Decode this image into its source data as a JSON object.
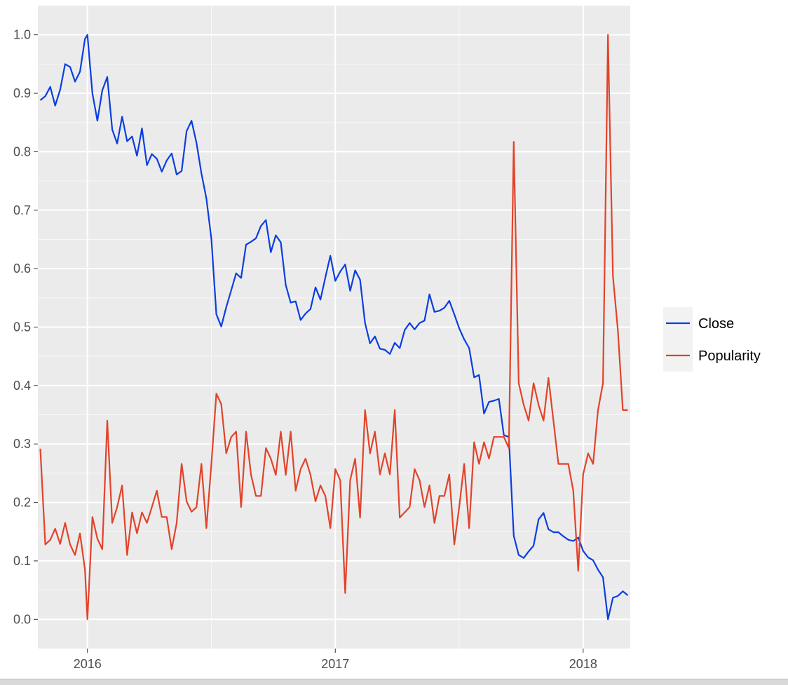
{
  "chart_data": {
    "type": "line",
    "title": "",
    "xlabel": "",
    "ylabel": "",
    "xlim": [
      2015.8,
      2018.19
    ],
    "ylim": [
      -0.05,
      1.05
    ],
    "grid": true,
    "legend_position": "right",
    "x_ticks": [
      {
        "value": 2016,
        "label": "2016"
      },
      {
        "value": 2017,
        "label": "2017"
      },
      {
        "value": 2018,
        "label": "2018"
      }
    ],
    "y_ticks": [
      {
        "value": 0.0,
        "label": "0.0"
      },
      {
        "value": 0.1,
        "label": "0.1"
      },
      {
        "value": 0.2,
        "label": "0.2"
      },
      {
        "value": 0.3,
        "label": "0.3"
      },
      {
        "value": 0.4,
        "label": "0.4"
      },
      {
        "value": 0.5,
        "label": "0.5"
      },
      {
        "value": 0.6,
        "label": "0.6"
      },
      {
        "value": 0.7,
        "label": "0.7"
      },
      {
        "value": 0.8,
        "label": "0.8"
      },
      {
        "value": 0.9,
        "label": "0.9"
      },
      {
        "value": 1.0,
        "label": "1.0"
      }
    ],
    "series": [
      {
        "name": "Close",
        "color": "#0a3ee0",
        "points": [
          [
            2015.81,
            0.888
          ],
          [
            2015.83,
            0.895
          ],
          [
            2015.85,
            0.911
          ],
          [
            2015.87,
            0.879
          ],
          [
            2015.89,
            0.906
          ],
          [
            2015.91,
            0.95
          ],
          [
            2015.93,
            0.945
          ],
          [
            2015.95,
            0.92
          ],
          [
            2015.97,
            0.937
          ],
          [
            2015.99,
            0.993
          ],
          [
            2016.0,
            1.0
          ],
          [
            2016.02,
            0.9
          ],
          [
            2016.04,
            0.853
          ],
          [
            2016.06,
            0.905
          ],
          [
            2016.08,
            0.928
          ],
          [
            2016.1,
            0.838
          ],
          [
            2016.12,
            0.814
          ],
          [
            2016.14,
            0.86
          ],
          [
            2016.16,
            0.818
          ],
          [
            2016.18,
            0.826
          ],
          [
            2016.2,
            0.793
          ],
          [
            2016.22,
            0.84
          ],
          [
            2016.24,
            0.777
          ],
          [
            2016.26,
            0.796
          ],
          [
            2016.28,
            0.788
          ],
          [
            2016.3,
            0.766
          ],
          [
            2016.32,
            0.785
          ],
          [
            2016.34,
            0.797
          ],
          [
            2016.36,
            0.761
          ],
          [
            2016.38,
            0.767
          ],
          [
            2016.4,
            0.835
          ],
          [
            2016.42,
            0.853
          ],
          [
            2016.44,
            0.815
          ],
          [
            2016.46,
            0.763
          ],
          [
            2016.48,
            0.72
          ],
          [
            2016.5,
            0.651
          ],
          [
            2016.52,
            0.522
          ],
          [
            2016.54,
            0.501
          ],
          [
            2016.56,
            0.534
          ],
          [
            2016.58,
            0.563
          ],
          [
            2016.6,
            0.592
          ],
          [
            2016.62,
            0.584
          ],
          [
            2016.64,
            0.641
          ],
          [
            2016.66,
            0.646
          ],
          [
            2016.68,
            0.652
          ],
          [
            2016.7,
            0.673
          ],
          [
            2016.72,
            0.683
          ],
          [
            2016.74,
            0.628
          ],
          [
            2016.76,
            0.657
          ],
          [
            2016.78,
            0.645
          ],
          [
            2016.8,
            0.572
          ],
          [
            2016.82,
            0.542
          ],
          [
            2016.84,
            0.544
          ],
          [
            2016.86,
            0.512
          ],
          [
            2016.88,
            0.523
          ],
          [
            2016.9,
            0.531
          ],
          [
            2016.92,
            0.568
          ],
          [
            2016.94,
            0.547
          ],
          [
            2016.96,
            0.585
          ],
          [
            2016.98,
            0.622
          ],
          [
            2017.0,
            0.579
          ],
          [
            2017.02,
            0.595
          ],
          [
            2017.04,
            0.607
          ],
          [
            2017.06,
            0.562
          ],
          [
            2017.08,
            0.597
          ],
          [
            2017.1,
            0.581
          ],
          [
            2017.12,
            0.507
          ],
          [
            2017.14,
            0.472
          ],
          [
            2017.16,
            0.484
          ],
          [
            2017.18,
            0.463
          ],
          [
            2017.2,
            0.461
          ],
          [
            2017.22,
            0.454
          ],
          [
            2017.24,
            0.473
          ],
          [
            2017.26,
            0.464
          ],
          [
            2017.28,
            0.495
          ],
          [
            2017.3,
            0.507
          ],
          [
            2017.32,
            0.496
          ],
          [
            2017.34,
            0.507
          ],
          [
            2017.36,
            0.511
          ],
          [
            2017.38,
            0.556
          ],
          [
            2017.4,
            0.526
          ],
          [
            2017.42,
            0.528
          ],
          [
            2017.44,
            0.533
          ],
          [
            2017.46,
            0.545
          ],
          [
            2017.48,
            0.522
          ],
          [
            2017.5,
            0.498
          ],
          [
            2017.52,
            0.479
          ],
          [
            2017.54,
            0.464
          ],
          [
            2017.56,
            0.414
          ],
          [
            2017.58,
            0.418
          ],
          [
            2017.6,
            0.352
          ],
          [
            2017.62,
            0.372
          ],
          [
            2017.64,
            0.374
          ],
          [
            2017.66,
            0.377
          ],
          [
            2017.68,
            0.315
          ],
          [
            2017.7,
            0.312
          ],
          [
            2017.72,
            0.143
          ],
          [
            2017.74,
            0.11
          ],
          [
            2017.76,
            0.105
          ],
          [
            2017.78,
            0.116
          ],
          [
            2017.8,
            0.126
          ],
          [
            2017.82,
            0.171
          ],
          [
            2017.84,
            0.182
          ],
          [
            2017.86,
            0.154
          ],
          [
            2017.88,
            0.149
          ],
          [
            2017.9,
            0.149
          ],
          [
            2017.92,
            0.142
          ],
          [
            2017.94,
            0.136
          ],
          [
            2017.96,
            0.134
          ],
          [
            2017.98,
            0.14
          ],
          [
            2018.0,
            0.117
          ],
          [
            2018.02,
            0.106
          ],
          [
            2018.04,
            0.101
          ],
          [
            2018.06,
            0.085
          ],
          [
            2018.08,
            0.072
          ],
          [
            2018.1,
            0.0
          ],
          [
            2018.12,
            0.037
          ],
          [
            2018.14,
            0.04
          ],
          [
            2018.16,
            0.048
          ],
          [
            2018.18,
            0.041
          ]
        ]
      },
      {
        "name": "Popularity",
        "color": "#e2432a",
        "points": [
          [
            2015.81,
            0.292
          ],
          [
            2015.83,
            0.128
          ],
          [
            2015.85,
            0.136
          ],
          [
            2015.87,
            0.155
          ],
          [
            2015.89,
            0.129
          ],
          [
            2015.91,
            0.165
          ],
          [
            2015.93,
            0.128
          ],
          [
            2015.95,
            0.11
          ],
          [
            2015.97,
            0.147
          ],
          [
            2015.99,
            0.085
          ],
          [
            2016.0,
            0.0
          ],
          [
            2016.02,
            0.175
          ],
          [
            2016.04,
            0.138
          ],
          [
            2016.06,
            0.12
          ],
          [
            2016.08,
            0.34
          ],
          [
            2016.1,
            0.165
          ],
          [
            2016.12,
            0.192
          ],
          [
            2016.14,
            0.229
          ],
          [
            2016.16,
            0.11
          ],
          [
            2016.18,
            0.183
          ],
          [
            2016.2,
            0.147
          ],
          [
            2016.22,
            0.183
          ],
          [
            2016.24,
            0.165
          ],
          [
            2016.26,
            0.192
          ],
          [
            2016.28,
            0.22
          ],
          [
            2016.3,
            0.175
          ],
          [
            2016.32,
            0.175
          ],
          [
            2016.34,
            0.12
          ],
          [
            2016.36,
            0.165
          ],
          [
            2016.38,
            0.266
          ],
          [
            2016.4,
            0.202
          ],
          [
            2016.42,
            0.184
          ],
          [
            2016.44,
            0.192
          ],
          [
            2016.46,
            0.266
          ],
          [
            2016.48,
            0.156
          ],
          [
            2016.5,
            0.266
          ],
          [
            2016.52,
            0.386
          ],
          [
            2016.54,
            0.368
          ],
          [
            2016.56,
            0.284
          ],
          [
            2016.58,
            0.312
          ],
          [
            2016.6,
            0.321
          ],
          [
            2016.62,
            0.192
          ],
          [
            2016.64,
            0.321
          ],
          [
            2016.66,
            0.247
          ],
          [
            2016.68,
            0.211
          ],
          [
            2016.7,
            0.211
          ],
          [
            2016.72,
            0.293
          ],
          [
            2016.74,
            0.275
          ],
          [
            2016.76,
            0.247
          ],
          [
            2016.78,
            0.321
          ],
          [
            2016.8,
            0.247
          ],
          [
            2016.82,
            0.321
          ],
          [
            2016.84,
            0.22
          ],
          [
            2016.86,
            0.257
          ],
          [
            2016.88,
            0.275
          ],
          [
            2016.9,
            0.247
          ],
          [
            2016.92,
            0.202
          ],
          [
            2016.94,
            0.229
          ],
          [
            2016.96,
            0.211
          ],
          [
            2016.98,
            0.156
          ],
          [
            2017.0,
            0.257
          ],
          [
            2017.02,
            0.238
          ],
          [
            2017.04,
            0.045
          ],
          [
            2017.06,
            0.238
          ],
          [
            2017.08,
            0.275
          ],
          [
            2017.1,
            0.174
          ],
          [
            2017.12,
            0.358
          ],
          [
            2017.14,
            0.284
          ],
          [
            2017.16,
            0.321
          ],
          [
            2017.18,
            0.248
          ],
          [
            2017.2,
            0.284
          ],
          [
            2017.22,
            0.248
          ],
          [
            2017.24,
            0.358
          ],
          [
            2017.26,
            0.174
          ],
          [
            2017.28,
            0.183
          ],
          [
            2017.3,
            0.192
          ],
          [
            2017.32,
            0.257
          ],
          [
            2017.34,
            0.238
          ],
          [
            2017.36,
            0.192
          ],
          [
            2017.38,
            0.229
          ],
          [
            2017.4,
            0.165
          ],
          [
            2017.42,
            0.211
          ],
          [
            2017.44,
            0.211
          ],
          [
            2017.46,
            0.248
          ],
          [
            2017.48,
            0.128
          ],
          [
            2017.5,
            0.192
          ],
          [
            2017.52,
            0.266
          ],
          [
            2017.54,
            0.156
          ],
          [
            2017.56,
            0.303
          ],
          [
            2017.58,
            0.266
          ],
          [
            2017.6,
            0.303
          ],
          [
            2017.62,
            0.275
          ],
          [
            2017.64,
            0.312
          ],
          [
            2017.66,
            0.312
          ],
          [
            2017.68,
            0.312
          ],
          [
            2017.7,
            0.293
          ],
          [
            2017.72,
            0.817
          ],
          [
            2017.74,
            0.404
          ],
          [
            2017.76,
            0.367
          ],
          [
            2017.78,
            0.34
          ],
          [
            2017.8,
            0.404
          ],
          [
            2017.82,
            0.367
          ],
          [
            2017.84,
            0.34
          ],
          [
            2017.86,
            0.413
          ],
          [
            2017.88,
            0.34
          ],
          [
            2017.9,
            0.266
          ],
          [
            2017.92,
            0.266
          ],
          [
            2017.94,
            0.266
          ],
          [
            2017.96,
            0.22
          ],
          [
            2017.98,
            0.083
          ],
          [
            2018.0,
            0.248
          ],
          [
            2018.02,
            0.284
          ],
          [
            2018.04,
            0.266
          ],
          [
            2018.06,
            0.358
          ],
          [
            2018.08,
            0.404
          ],
          [
            2018.1,
            1.0
          ],
          [
            2018.12,
            0.587
          ],
          [
            2018.14,
            0.495
          ],
          [
            2018.16,
            0.358
          ],
          [
            2018.18,
            0.358
          ]
        ]
      }
    ]
  }
}
